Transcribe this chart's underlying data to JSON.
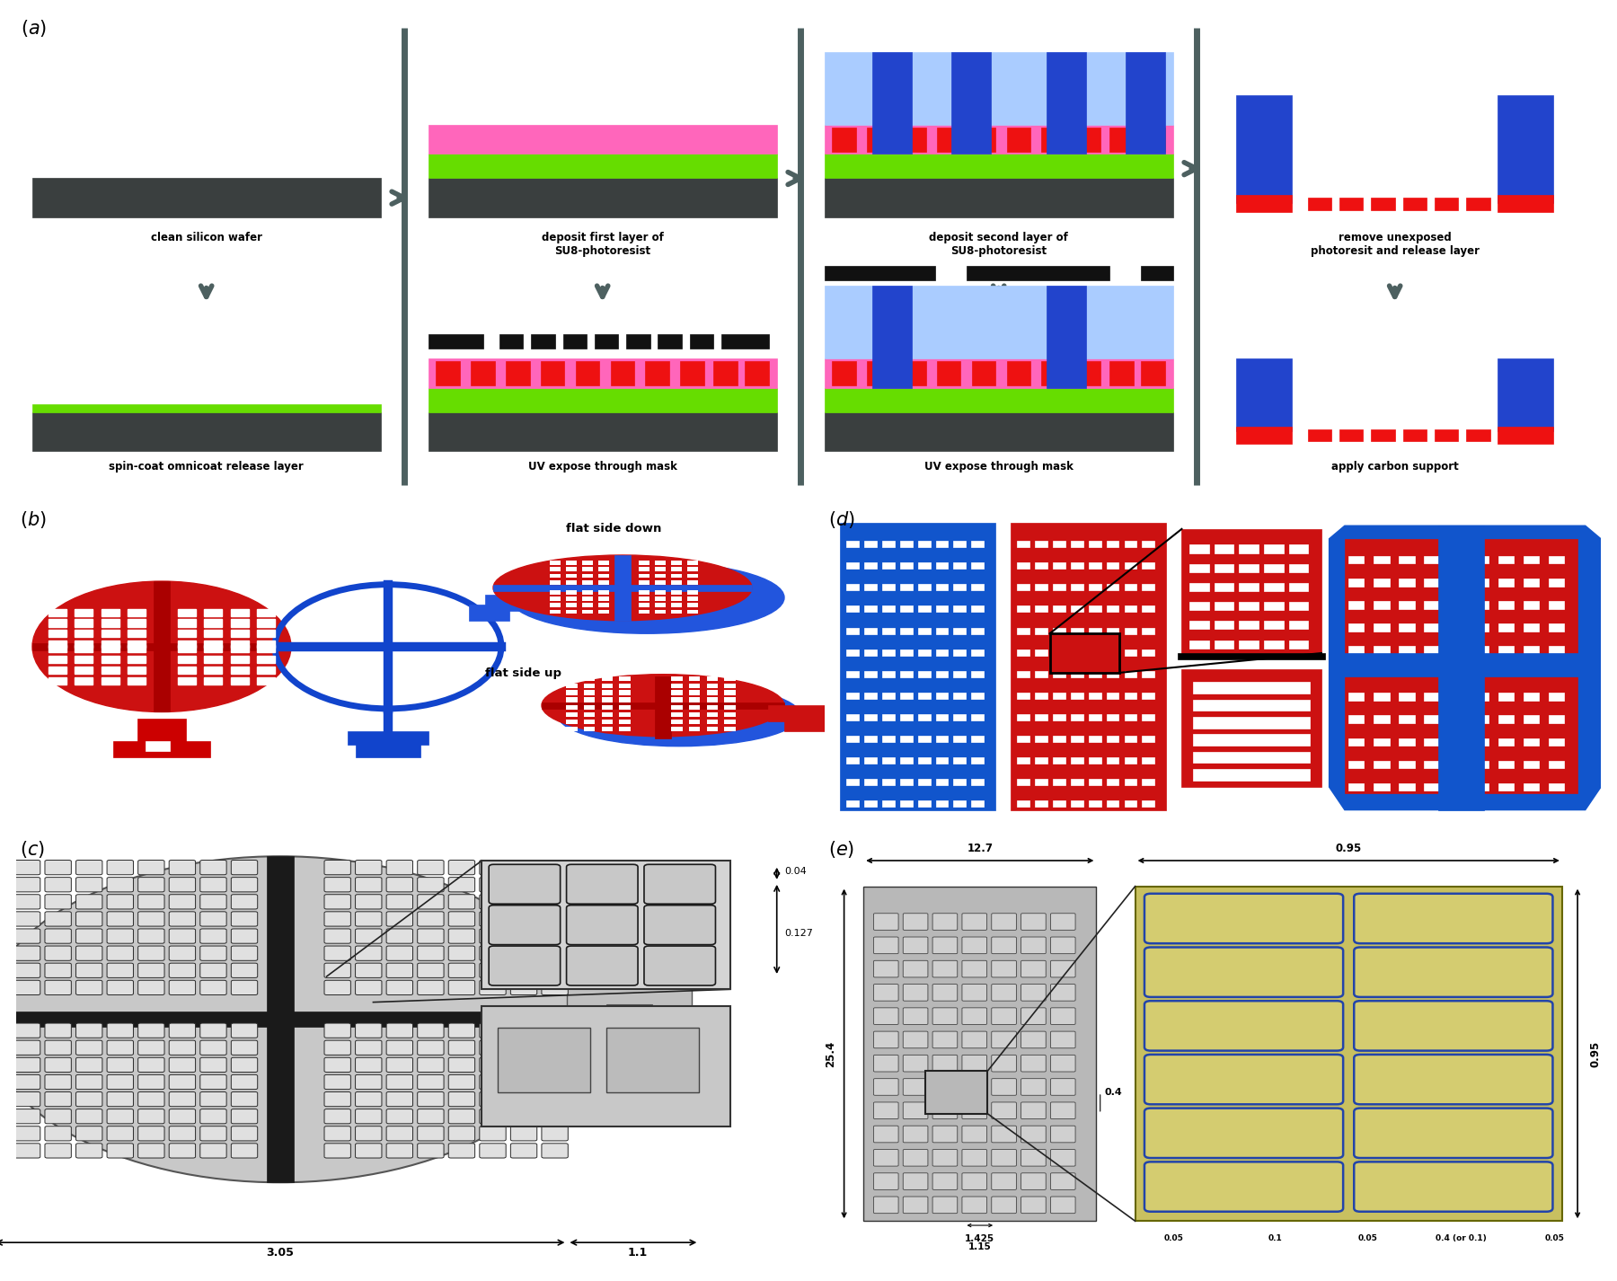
{
  "figure_width": 18.0,
  "figure_height": 14.26,
  "bg_color": "#ffffff",
  "colors": {
    "silicon": "#3a3f3f",
    "green_layer": "#66dd00",
    "pink_layer": "#ff66bb",
    "red_photoresist": "#ee1111",
    "blue_su8": "#5599ff",
    "blue_dark": "#2244cc",
    "black_mask": "#111111",
    "arrow_gray": "#4d6060",
    "light_blue": "#aaccff",
    "blue_3d": "#2255dd",
    "red_3d": "#dd1111",
    "red_panel": "#cc1111",
    "blue_panel": "#1155cc"
  },
  "step_labels_top": [
    "clean silicon wafer",
    "deposit first layer of\nSU8-photoresist",
    "deposit second layer of\nSU8-photoresist",
    "remove unexposed\nphotoresit and release layer"
  ],
  "step_labels_bot": [
    "spin-coat omnicoat release layer",
    "UV expose through mask",
    "UV expose through mask",
    "apply carbon support"
  ],
  "dim_c_width": "3.05",
  "dim_c_handle": "1.1",
  "dim_c_04": "0.04",
  "dim_c_127": "0.127",
  "dim_e_w1": "12.7",
  "dim_e_w2": "0.95",
  "dim_e_h1": "25.4",
  "dim_e_h2": "0.95",
  "dim_e_04": "0.4",
  "dim_e_1425": "1.425",
  "dim_e_115": "1.15",
  "dim_e_005": "0.05",
  "dim_e_01": "0.1",
  "dim_e_04b": "0.4 (or 0.1)"
}
